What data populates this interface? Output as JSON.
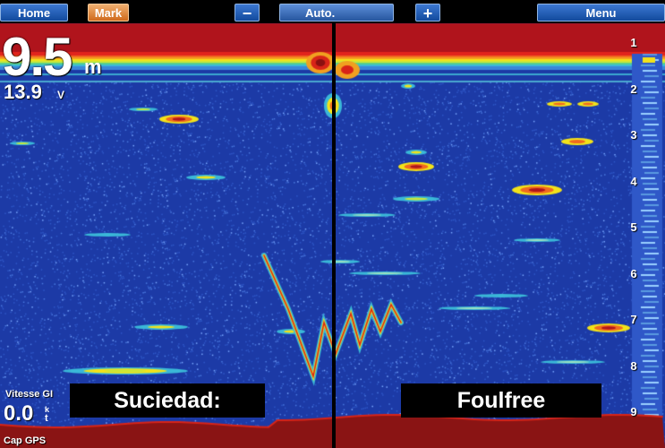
{
  "toolbar": {
    "home_label": "Home",
    "mark_label": "Mark",
    "minus_label": "−",
    "gain_mode_label": "Auto.",
    "plus_label": "+",
    "menu_label": "Menu"
  },
  "readouts": {
    "depth_value": "9.5",
    "depth_unit": "m",
    "voltage_value": "13.9",
    "voltage_unit": "V",
    "speed_label": "Vitesse GI",
    "speed_value": "0.0",
    "speed_unit_top": "k",
    "speed_unit_bottom": "t",
    "heading_label": "Cap GPS"
  },
  "captions": {
    "left": "Suciedad:",
    "right": "Foulfree"
  },
  "depth_scale": [
    "1",
    "2",
    "3",
    "4",
    "5",
    "6",
    "7",
    "8",
    "9"
  ],
  "colors": {
    "water": "#1c3aa6",
    "bottom": "#8a1414",
    "surface_band": "#d8241c",
    "accent_yellow": "#f2e21a",
    "button_blue": "#2a62b8",
    "button_orange": "#e08a3a"
  }
}
